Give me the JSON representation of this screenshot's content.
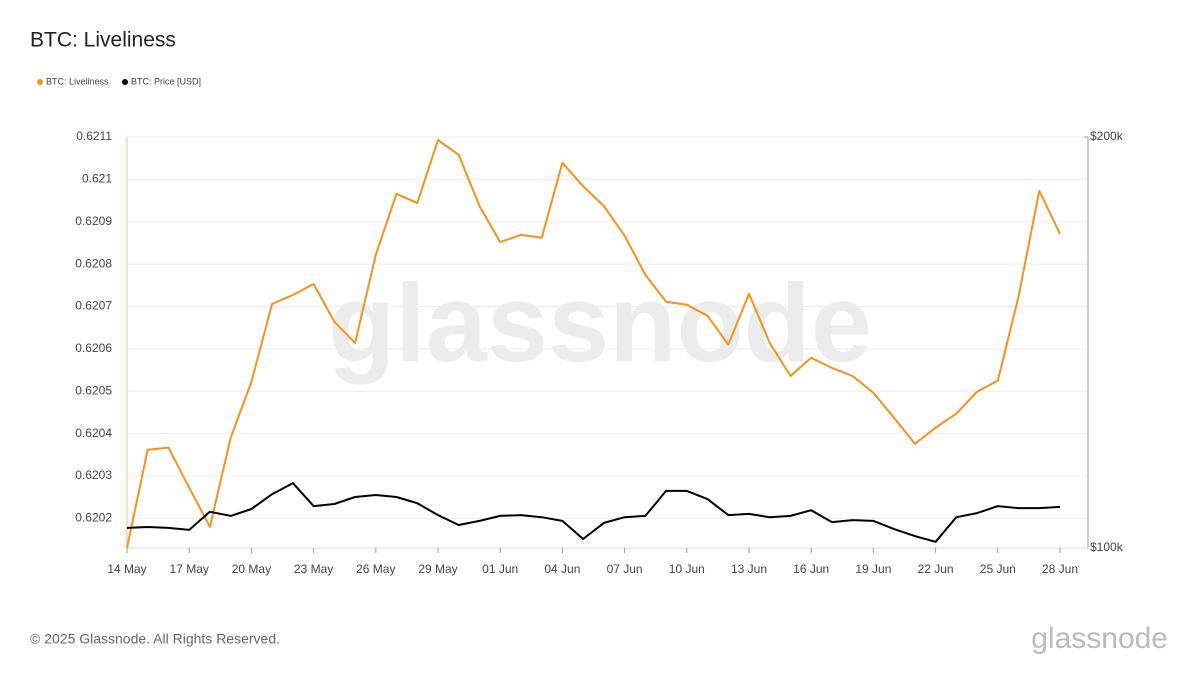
{
  "chart_data": {
    "type": "line",
    "title": "BTC: Liveliness",
    "watermark": "glassnode",
    "footer": "© 2025 Glassnode. All Rights Reserved.",
    "logo": "glassnode",
    "categories": [
      "14 May",
      null,
      null,
      "17 May",
      null,
      null,
      "20 May",
      null,
      null,
      "23 May",
      null,
      null,
      "26 May",
      null,
      null,
      "29 May",
      null,
      null,
      "01 Jun",
      null,
      null,
      "04 Jun",
      null,
      null,
      "07 Jun",
      null,
      null,
      "10 Jun",
      null,
      null,
      "13 Jun",
      null,
      null,
      "16 Jun",
      null,
      null,
      "19 Jun",
      null,
      null,
      "22 Jun",
      null,
      null,
      "25 Jun",
      null,
      null,
      "28 Jun"
    ],
    "series": [
      {
        "name": "BTC: Liveliness",
        "color": "#f7931a",
        "values": [
          0.62013,
          0.620362,
          0.620367,
          0.620272,
          0.62018,
          0.62039,
          0.620522,
          0.620706,
          0.620727,
          0.620753,
          0.620664,
          0.620614,
          0.620822,
          0.620966,
          0.620944,
          0.621093,
          0.621058,
          0.620937,
          0.620852,
          0.620869,
          0.620862,
          0.621039,
          0.620984,
          0.620937,
          0.620867,
          0.620775,
          0.620711,
          0.620704,
          0.620678,
          0.62061,
          0.62073,
          0.620614,
          0.620536,
          0.620579,
          0.620555,
          0.620536,
          0.620496,
          0.620437,
          0.620376,
          0.620414,
          0.620447,
          0.620499,
          0.620525,
          0.620723,
          0.620973,
          0.620871
        ]
      },
      {
        "name": "BTC: Price [USD]",
        "color": "#000000",
        "axis": "y2",
        "values": [
          104900,
          105100,
          104900,
          104400,
          108800,
          107800,
          109500,
          113100,
          115800,
          110200,
          110700,
          112400,
          112900,
          112400,
          110900,
          108000,
          105600,
          106600,
          107800,
          108000,
          107500,
          106600,
          102200,
          106100,
          107500,
          107800,
          113900,
          113900,
          111900,
          108000,
          108300,
          107500,
          107800,
          109200,
          106300,
          106800,
          106600,
          104600,
          102900,
          101500,
          107500,
          108500,
          110200,
          109700,
          109700,
          110000
        ]
      }
    ],
    "ylim": [
      0.62013,
      0.6211
    ],
    "yticks": [
      0.6202,
      0.6203,
      0.6204,
      0.6205,
      0.6206,
      0.6207,
      0.6208,
      0.6209,
      0.621,
      0.6211
    ],
    "y2lim": [
      100000,
      200000
    ],
    "y2ticks": [
      {
        "value": 100000,
        "label": "$100k"
      },
      {
        "value": 200000,
        "label": "$200k"
      }
    ],
    "grid": true
  }
}
